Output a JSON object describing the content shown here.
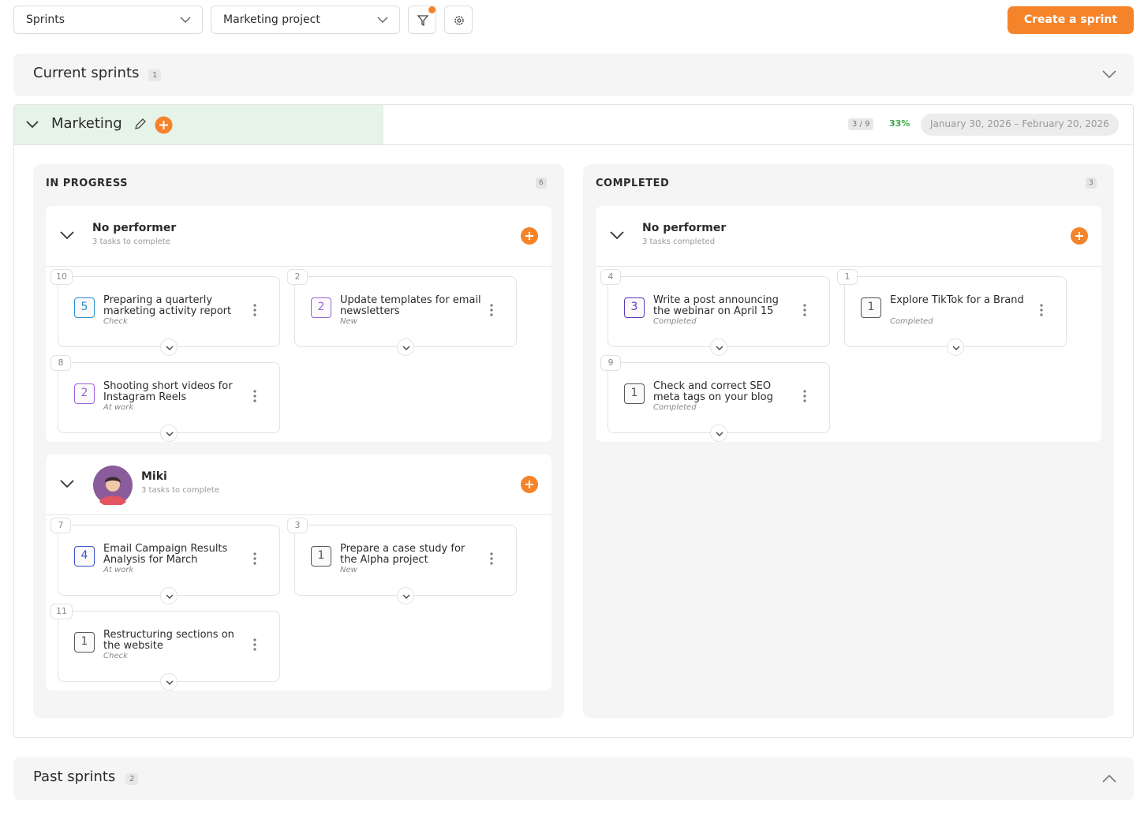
{
  "toolbar": {
    "view": "Sprints",
    "project": "Marketing project",
    "create_button": "Create a sprint"
  },
  "current_sprints": {
    "title": "Current sprints",
    "count": 1
  },
  "sprint": {
    "name": "Marketing",
    "progress": "3 / 9",
    "percent": "33%",
    "dates": "January 30, 2026 – February 20, 2026",
    "columns": [
      {
        "title": "IN PROGRESS",
        "count": 6,
        "groups": [
          {
            "performer": "No performer",
            "subtitle": "3 tasks to complete",
            "avatar": false,
            "tasks": [
              {
                "id": 10,
                "points": 5,
                "color": "#2a8fd0",
                "title": "Preparing a quarterly marketing activity report",
                "status": "Check"
              },
              {
                "id": 2,
                "points": 2,
                "color": "#9b63dd",
                "title": "Update templates for email newsletters",
                "status": "New"
              },
              {
                "id": 8,
                "points": 2,
                "color": "#9b63dd",
                "title": "Shooting short videos for Instagram Reels",
                "status": "At work"
              }
            ]
          },
          {
            "performer": "Miki",
            "subtitle": "3 tasks to complete",
            "avatar": true,
            "tasks": [
              {
                "id": 7,
                "points": 4,
                "color": "#3c50c8",
                "title": "Email Campaign Results Analysis for March",
                "status": "At work"
              },
              {
                "id": 3,
                "points": 1,
                "color": "#555555",
                "title": "Prepare a case study for the Alpha project",
                "status": "New"
              },
              {
                "id": 11,
                "points": 1,
                "color": "#555555",
                "title": "Restructuring sections on the website",
                "status": "Check"
              }
            ]
          }
        ]
      },
      {
        "title": "COMPLETED",
        "count": 3,
        "groups": [
          {
            "performer": "No performer",
            "subtitle": "3 tasks completed",
            "avatar": false,
            "tasks": [
              {
                "id": 4,
                "points": 3,
                "color": "#5a3bb8",
                "title": "Write a post announcing the webinar on April 15",
                "status": "Completed"
              },
              {
                "id": 1,
                "points": 1,
                "color": "#555555",
                "title": "Explore TikTok for a Brand",
                "status": "Completed"
              },
              {
                "id": 9,
                "points": 1,
                "color": "#555555",
                "title": "Check and correct SEO meta tags on your blog",
                "status": "Completed"
              }
            ]
          }
        ]
      }
    ]
  },
  "past_sprints": {
    "title": "Past sprints",
    "count": 2
  }
}
